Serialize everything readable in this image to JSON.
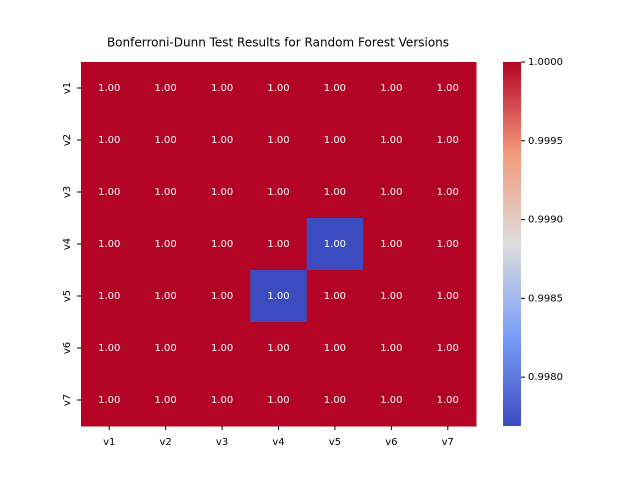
{
  "chart_data": {
    "type": "heatmap",
    "title": "Bonferroni-Dunn Test Results for Random Forest Versions",
    "x_categories": [
      "v1",
      "v2",
      "v3",
      "v4",
      "v5",
      "v6",
      "v7"
    ],
    "y_categories": [
      "v1",
      "v2",
      "v3",
      "v4",
      "v5",
      "v6",
      "v7"
    ],
    "values": [
      [
        1,
        1,
        1,
        1,
        1,
        1,
        1
      ],
      [
        1,
        1,
        1,
        1,
        1,
        1,
        1
      ],
      [
        1,
        1,
        1,
        1,
        1,
        1,
        1
      ],
      [
        1,
        1,
        1,
        1,
        0.99769,
        1,
        1
      ],
      [
        1,
        1,
        1,
        0.99769,
        1,
        1,
        1
      ],
      [
        1,
        1,
        1,
        1,
        1,
        1,
        1
      ],
      [
        1,
        1,
        1,
        1,
        1,
        1,
        1
      ]
    ],
    "value_labels": [
      [
        "1.00",
        "1.00",
        "1.00",
        "1.00",
        "1.00",
        "1.00",
        "1.00"
      ],
      [
        "1.00",
        "1.00",
        "1.00",
        "1.00",
        "1.00",
        "1.00",
        "1.00"
      ],
      [
        "1.00",
        "1.00",
        "1.00",
        "1.00",
        "1.00",
        "1.00",
        "1.00"
      ],
      [
        "1.00",
        "1.00",
        "1.00",
        "1.00",
        "1.00",
        "1.00",
        "1.00"
      ],
      [
        "1.00",
        "1.00",
        "1.00",
        "1.00",
        "1.00",
        "1.00",
        "1.00"
      ],
      [
        "1.00",
        "1.00",
        "1.00",
        "1.00",
        "1.00",
        "1.00",
        "1.00"
      ],
      [
        "1.00",
        "1.00",
        "1.00",
        "1.00",
        "1.00",
        "1.00",
        "1.00"
      ]
    ],
    "colormap": "coolwarm",
    "clim": [
      0.99769,
      1
    ],
    "cticks": [
      {
        "value": 0.998,
        "label": "0.9980"
      },
      {
        "value": 0.9985,
        "label": "0.9985"
      },
      {
        "value": 0.999,
        "label": "0.9990"
      },
      {
        "value": 0.9995,
        "label": "0.9995"
      },
      {
        "value": 1,
        "label": "1.0000"
      }
    ]
  }
}
